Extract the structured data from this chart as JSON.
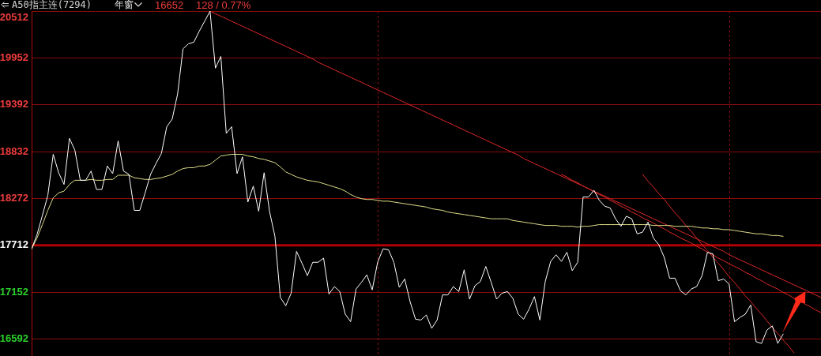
{
  "chart_data": {
    "type": "line",
    "title": "A50指主连(7294)",
    "subtitle": "年窗",
    "annotations": [
      "16652",
      "128 / 0.77%"
    ],
    "categories": [
      null,
      null,
      null,
      null,
      null,
      null,
      null,
      null,
      null,
      null,
      null,
      null,
      null,
      null,
      null,
      null,
      null,
      null,
      null,
      null,
      null,
      null,
      null,
      null,
      null,
      null,
      null,
      null,
      null,
      null,
      null,
      null,
      null,
      null,
      null,
      null,
      null,
      null,
      null,
      null,
      null,
      null,
      null,
      null,
      null,
      null,
      null,
      null,
      null,
      null,
      null,
      null,
      null,
      null,
      null,
      null,
      null,
      null,
      null,
      null,
      null,
      null,
      null,
      null,
      null,
      null,
      null,
      null,
      null,
      null,
      null,
      null,
      null,
      null,
      null,
      null,
      null,
      null,
      null,
      null,
      null,
      null,
      null,
      null,
      null,
      null,
      null,
      null,
      null,
      null,
      null,
      null,
      null,
      null,
      null,
      null,
      null,
      null,
      null,
      null,
      null,
      null,
      null,
      null,
      null,
      null,
      null,
      null,
      null,
      null,
      null,
      null,
      null,
      null,
      null,
      null,
      null,
      null,
      null,
      null,
      null,
      null,
      null,
      null,
      null,
      null,
      null,
      null,
      null,
      null,
      null,
      null,
      null,
      null,
      null,
      null,
      null,
      null,
      null,
      null,
      null,
      null,
      null,
      null,
      null,
      null,
      null
    ],
    "series": [
      {
        "color": "#ffffff",
        "values": [
          17670,
          17840,
          18070,
          18310,
          18800,
          18580,
          18440,
          18990,
          18850,
          18490,
          18490,
          18600,
          18380,
          18380,
          18660,
          18570,
          18960,
          18600,
          18560,
          18130,
          18130,
          18340,
          18560,
          18690,
          18810,
          19130,
          19220,
          19520,
          20060,
          20120,
          20140,
          20270,
          20390,
          20510,
          19830,
          19970,
          19050,
          19130,
          18570,
          18770,
          18230,
          18420,
          18120,
          18580,
          18120,
          17820,
          17090,
          16990,
          17140,
          17640,
          17500,
          17350,
          17510,
          17510,
          17560,
          17130,
          17220,
          17160,
          16890,
          16800,
          17190,
          17270,
          17360,
          17180,
          17510,
          17670,
          17660,
          17510,
          17210,
          17310,
          17040,
          16830,
          16820,
          16880,
          16720,
          16820,
          17120,
          17120,
          17220,
          17160,
          17420,
          17070,
          17230,
          17280,
          17460,
          17270,
          17070,
          17140,
          17160,
          17080,
          16890,
          16830,
          16950,
          17100,
          16820,
          17280,
          17520,
          17600,
          17520,
          17630,
          17410,
          17510,
          18290,
          18290,
          18370,
          18250,
          18180,
          18160,
          18030,
          17940,
          18060,
          18030,
          17850,
          17870,
          17990,
          17800,
          17720,
          17570,
          17320,
          17320,
          17170,
          17120,
          17190,
          17220,
          17350,
          17630,
          17610,
          17290,
          17310,
          17250,
          16800,
          16850,
          16890,
          17000,
          16560,
          16540,
          16700,
          16750,
          16540,
          16652,
          null,
          null,
          null,
          null,
          null,
          null,
          null
        ]
      },
      {
        "color": "#dede8c",
        "values": [
          17670,
          17800,
          17960,
          18130,
          18280,
          18340,
          18360,
          18440,
          18490,
          18490,
          18490,
          18500,
          18490,
          18490,
          18500,
          18500,
          18550,
          18550,
          18550,
          18520,
          18510,
          18500,
          18500,
          18510,
          18520,
          18540,
          18560,
          18600,
          18630,
          18640,
          18640,
          18660,
          18660,
          18680,
          18730,
          18780,
          18790,
          18800,
          18800,
          18800,
          18780,
          18770,
          18750,
          18740,
          18720,
          18700,
          18650,
          18590,
          18560,
          18530,
          18510,
          18490,
          18480,
          18470,
          18450,
          18430,
          18410,
          18390,
          18360,
          18320,
          18290,
          18270,
          18260,
          18260,
          18250,
          18240,
          18240,
          18230,
          18220,
          18210,
          18200,
          18190,
          18180,
          18170,
          18150,
          18140,
          18130,
          18110,
          18100,
          18090,
          18080,
          18070,
          18060,
          18050,
          18040,
          18030,
          18030,
          18030,
          18030,
          18010,
          18000,
          17990,
          17980,
          17970,
          17960,
          17950,
          17950,
          17950,
          17940,
          17940,
          17940,
          17930,
          17940,
          17940,
          17950,
          17960,
          17960,
          17960,
          17960,
          17960,
          17960,
          17960,
          17960,
          17960,
          17960,
          17950,
          17950,
          17950,
          17950,
          17940,
          17940,
          17940,
          17940,
          17930,
          17920,
          17920,
          17910,
          17910,
          17900,
          17900,
          17890,
          17880,
          17870,
          17860,
          17850,
          17850,
          17840,
          17830,
          17830,
          17820,
          null,
          null,
          null,
          null,
          null,
          null,
          null
        ]
      },
      {
        "type": "line",
        "color": "#e02828",
        "values": [
          null,
          null,
          null,
          null,
          null,
          null,
          null,
          null,
          null,
          null,
          null,
          null,
          null,
          null,
          null,
          null,
          null,
          null,
          null,
          null,
          null,
          null,
          null,
          null,
          null,
          null,
          null,
          null,
          null,
          null,
          null,
          null,
          null,
          20510,
          20480,
          20450,
          20420,
          20390,
          20360,
          20330,
          20300,
          20270,
          20240,
          20210,
          20180,
          20150,
          20120,
          20090,
          20060,
          20030,
          20000,
          19970,
          19940,
          19900,
          19870,
          19840,
          19810,
          19780,
          19750,
          19720,
          19690,
          19660,
          19630,
          19600,
          19570,
          19540,
          19510,
          19480,
          19450,
          19420,
          19390,
          19360,
          19330,
          19300,
          19270,
          19240,
          19210,
          19180,
          19150,
          19120,
          19090,
          19060,
          19030,
          19000,
          18970,
          18940,
          18910,
          18880,
          18850,
          18820,
          18790,
          18750,
          18720,
          18690,
          18660,
          18630,
          18600,
          18570,
          18540,
          18510,
          18480,
          18450,
          18420,
          18390,
          18360,
          18330,
          18300,
          18270,
          18240,
          18210,
          18180,
          18150,
          18120,
          18090,
          18060,
          18030,
          18000,
          17970,
          17940,
          17910,
          17880,
          17850,
          17820,
          17790,
          17760,
          17730,
          17700,
          17670,
          17640,
          17600,
          17570,
          17540,
          17510,
          17480,
          17450,
          17420,
          17390,
          17360,
          17330,
          17300,
          17270,
          17240,
          17210,
          17180,
          17150,
          17120,
          17090
        ]
      },
      {
        "type": "line",
        "color": "#e02828",
        "values": [
          null,
          null,
          null,
          null,
          null,
          null,
          null,
          null,
          null,
          null,
          null,
          null,
          null,
          null,
          null,
          null,
          null,
          null,
          null,
          null,
          null,
          null,
          null,
          null,
          null,
          null,
          null,
          null,
          null,
          null,
          null,
          null,
          null,
          null,
          null,
          null,
          null,
          null,
          null,
          null,
          null,
          null,
          null,
          null,
          null,
          null,
          null,
          null,
          null,
          null,
          null,
          null,
          null,
          null,
          null,
          null,
          null,
          null,
          null,
          null,
          null,
          null,
          null,
          null,
          null,
          null,
          null,
          null,
          null,
          null,
          null,
          null,
          null,
          null,
          null,
          null,
          null,
          null,
          null,
          null,
          null,
          null,
          null,
          null,
          null,
          null,
          null,
          null,
          null,
          null,
          null,
          null,
          null,
          null,
          null,
          null,
          null,
          null,
          18560,
          18530,
          18490,
          18460,
          18420,
          18390,
          18350,
          18320,
          18290,
          18250,
          18220,
          18180,
          18150,
          18110,
          18080,
          18040,
          18010,
          17980,
          17940,
          17910,
          17870,
          17840,
          17800,
          17770,
          17740,
          17700,
          17670,
          17630,
          17600,
          17560,
          17530,
          17490,
          17460,
          17430,
          17390,
          17360,
          17320,
          17290,
          17250,
          17220,
          17190,
          17150,
          17120,
          17080,
          null,
          17010,
          16980,
          16940,
          16910
        ]
      },
      {
        "type": "line",
        "color": "#e02828",
        "values": [
          null,
          null,
          null,
          null,
          null,
          null,
          null,
          null,
          null,
          null,
          null,
          null,
          null,
          null,
          null,
          null,
          null,
          null,
          null,
          null,
          null,
          null,
          null,
          null,
          null,
          null,
          null,
          null,
          null,
          null,
          null,
          null,
          null,
          null,
          null,
          null,
          null,
          null,
          null,
          null,
          null,
          null,
          null,
          null,
          null,
          null,
          null,
          null,
          null,
          null,
          null,
          null,
          null,
          null,
          null,
          null,
          null,
          null,
          null,
          null,
          null,
          null,
          null,
          null,
          null,
          null,
          null,
          null,
          null,
          null,
          null,
          null,
          null,
          null,
          null,
          null,
          null,
          null,
          null,
          null,
          null,
          null,
          null,
          null,
          null,
          null,
          null,
          null,
          null,
          null,
          null,
          null,
          null,
          null,
          null,
          null,
          null,
          null,
          null,
          null,
          null,
          null,
          null,
          null,
          null,
          null,
          null,
          null,
          null,
          null,
          null,
          null,
          null,
          18560,
          18480,
          18410,
          18330,
          18260,
          18180,
          18100,
          18030,
          17950,
          17880,
          17800,
          17720,
          17650,
          17570,
          17500,
          17420,
          17340,
          17270,
          17190,
          17110,
          17040,
          16960,
          16890,
          16810,
          16730,
          16660,
          16580,
          16510,
          16430,
          null,
          null,
          null,
          null,
          null
        ]
      }
    ],
    "ylim": [
      16390,
      20512
    ],
    "yticks": [
      16592,
      17152,
      17712,
      18272,
      18832,
      19392,
      19952,
      20512
    ],
    "tick_labels": "y",
    "grid": "y",
    "legend": false,
    "marker": "none",
    "ref_lines": [
      {
        "axis": "y",
        "value": 17712,
        "color": "#b00000"
      }
    ]
  }
}
